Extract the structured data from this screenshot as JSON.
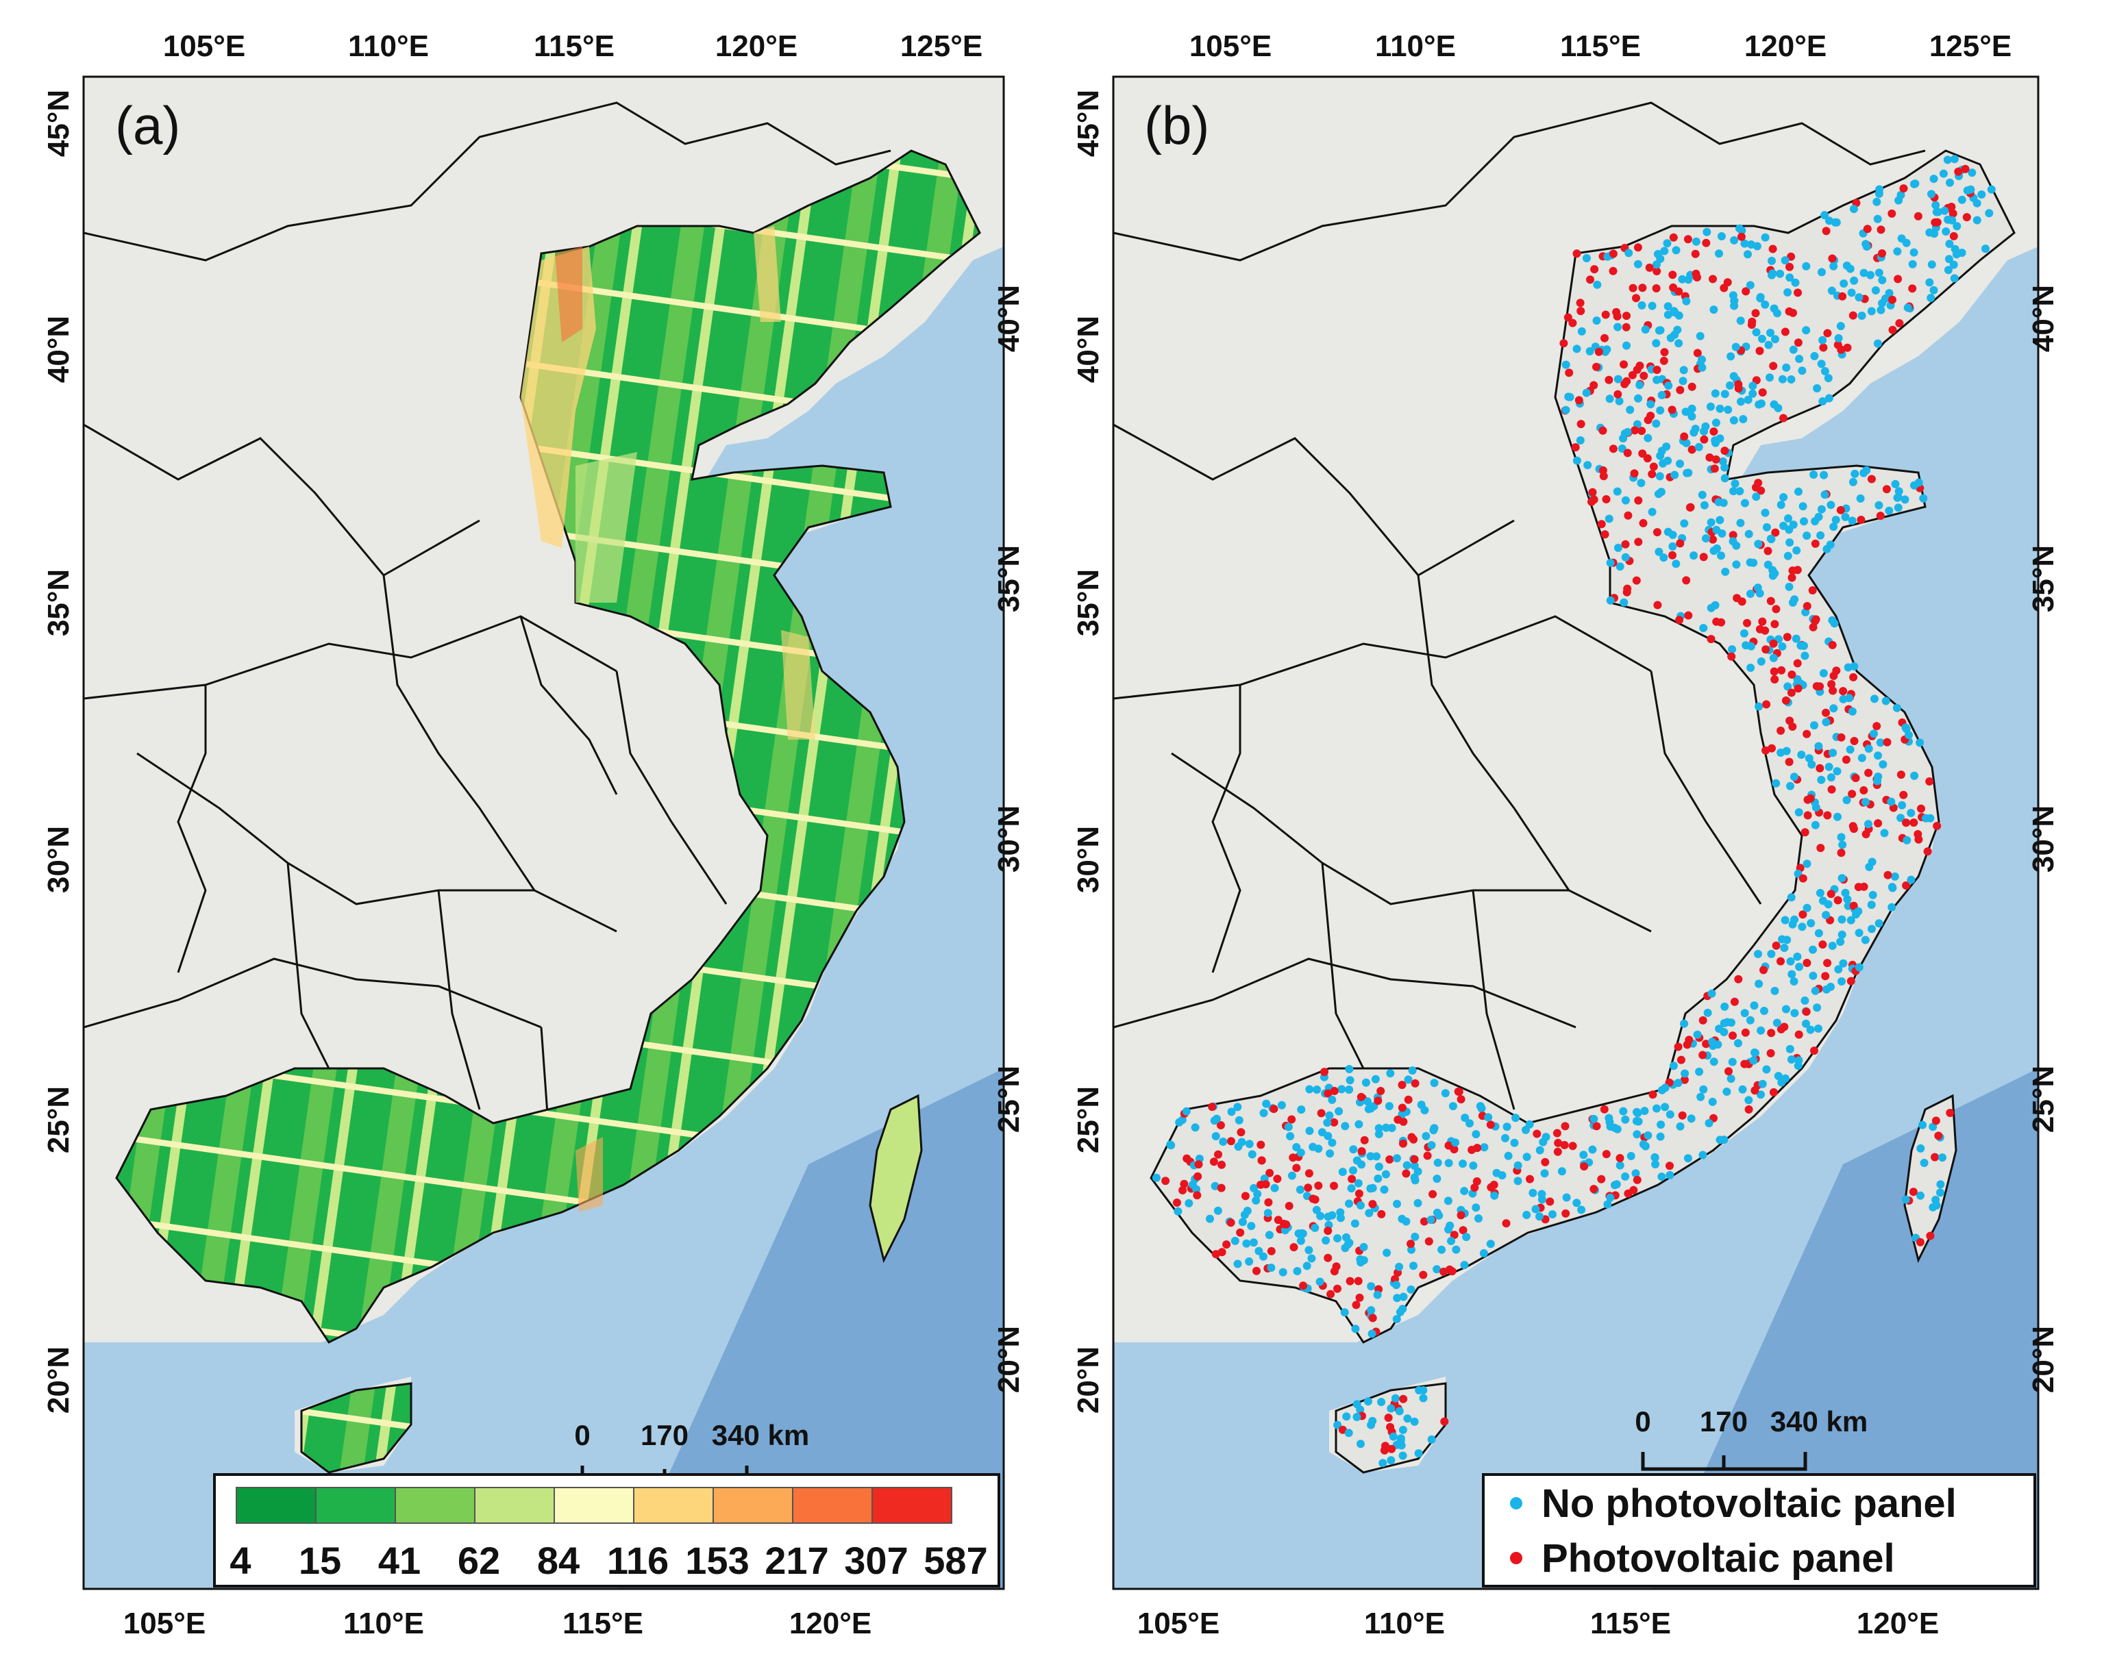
{
  "panels": [
    {
      "label": "(a)",
      "top_ticks": [
        "105°E",
        "110°E",
        "115°E",
        "120°E",
        "125°E"
      ],
      "bottom_ticks": [
        "105°E",
        "110°E",
        "115°E",
        "120°E"
      ],
      "left_ticks": [
        "45°N",
        "40°N",
        "35°N",
        "30°N",
        "25°N",
        "20°N"
      ],
      "right_ticks": [
        "40°N",
        "35°N",
        "30°N",
        "25°N",
        "20°N"
      ],
      "scalebar": {
        "labels": [
          "0",
          "170",
          "340 km"
        ]
      },
      "colorbar": {
        "labels": [
          "4",
          "15",
          "41",
          "62",
          "84",
          "116",
          "153",
          "217",
          "307",
          "587"
        ],
        "colors": [
          "#0a9a3e",
          "#1fb24a",
          "#7ccd54",
          "#c4e682",
          "#fbfbc0",
          "#fdd57a",
          "#fcaa55",
          "#f8723a",
          "#ef2a20"
        ]
      }
    },
    {
      "label": "(b)",
      "top_ticks": [
        "105°E",
        "110°E",
        "115°E",
        "120°E",
        "125°E"
      ],
      "bottom_ticks": [
        "105°E",
        "110°E",
        "115°E",
        "120°E"
      ],
      "left_ticks": [
        "45°N",
        "40°N",
        "35°N",
        "30°N",
        "25°N",
        "20°N"
      ],
      "right_ticks": [
        "40°N",
        "35°N",
        "30°N",
        "25°N",
        "20°N"
      ],
      "scalebar": {
        "labels": [
          "0",
          "170",
          "340 km"
        ]
      },
      "legend": {
        "items": [
          {
            "label": "No photovoltaic panel",
            "color": "#1ab4e8"
          },
          {
            "label": "Photovoltaic panel",
            "color": "#e8141e"
          }
        ]
      }
    }
  ],
  "colors": {
    "sea": "#a9cde6",
    "land": "#e9e9e5",
    "border": "#111111"
  }
}
